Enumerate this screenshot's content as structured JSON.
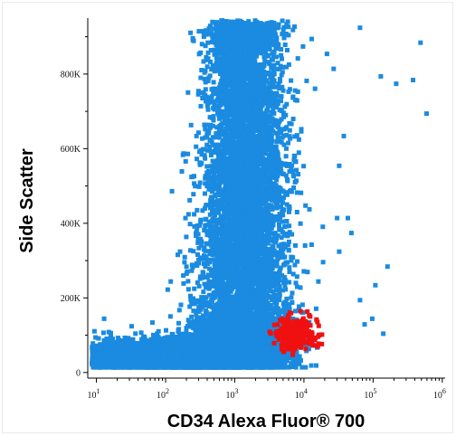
{
  "chart_data": {
    "type": "scatter",
    "xlabel": "CD34 Alexa Fluor® 700",
    "ylabel": "Side Scatter",
    "x_scale": "log",
    "x_ticks": [
      {
        "base": "10",
        "exp": "1",
        "value": 10
      },
      {
        "base": "10",
        "exp": "2",
        "value": 100
      },
      {
        "base": "10",
        "exp": "3",
        "value": 1000
      },
      {
        "base": "10",
        "exp": "4",
        "value": 10000
      },
      {
        "base": "10",
        "exp": "5",
        "value": 100000
      },
      {
        "base": "10",
        "exp": "6",
        "value": 1000000
      }
    ],
    "y_ticks": [
      {
        "label": "0",
        "value": 0
      },
      {
        "label": "200K",
        "value": 200000
      },
      {
        "label": "400K",
        "value": 400000
      },
      {
        "label": "600K",
        "value": 600000
      },
      {
        "label": "800K",
        "value": 800000
      }
    ],
    "xlim": [
      7.5,
      1100000
    ],
    "ylim": [
      -15000,
      950000
    ],
    "grid": false,
    "series": [
      {
        "color": "#1a8be0",
        "distribution": [
          {
            "x": 15,
            "y": 55000,
            "sx": 0.22,
            "sy": 22000,
            "n": 500
          },
          {
            "x": 50,
            "y": 50000,
            "sx": 0.25,
            "sy": 20000,
            "n": 900
          },
          {
            "x": 200,
            "y": 55000,
            "sx": 0.25,
            "sy": 25000,
            "n": 1300
          },
          {
            "x": 900,
            "y": 65000,
            "sx": 0.3,
            "sy": 30000,
            "n": 1300
          },
          {
            "x": 3000,
            "y": 70000,
            "sx": 0.22,
            "sy": 30000,
            "n": 500
          },
          {
            "x": 1100,
            "y": 130000,
            "sx": 0.35,
            "sy": 40000,
            "n": 1200
          },
          {
            "x": 1200,
            "y": 300000,
            "sx": 0.32,
            "sy": 70000,
            "n": 1700
          },
          {
            "x": 1300,
            "y": 520000,
            "sx": 0.3,
            "sy": 80000,
            "n": 1700
          },
          {
            "x": 1300,
            "y": 750000,
            "sx": 0.27,
            "sy": 80000,
            "n": 1500
          },
          {
            "x": 1200,
            "y": 910000,
            "sx": 0.25,
            "sy": 25000,
            "n": 700
          }
        ],
        "outliers": [
          [
            9,
            70000
          ],
          [
            9,
            100000
          ],
          [
            12,
            150000
          ],
          [
            30,
            130000
          ],
          [
            60,
            140000
          ],
          [
            70,
            110000
          ],
          [
            110,
            250000
          ],
          [
            150,
            330000
          ],
          [
            180,
            420000
          ],
          [
            220,
            530000
          ],
          [
            260,
            640000
          ],
          [
            300,
            720000
          ],
          [
            340,
            810000
          ],
          [
            420,
            870000
          ],
          [
            700,
            920000
          ],
          [
            9000,
            880000
          ],
          [
            12000,
            900000
          ],
          [
            20000,
            860000
          ],
          [
            25000,
            820000
          ],
          [
            30000,
            560000
          ],
          [
            35000,
            640000
          ],
          [
            28000,
            420000
          ],
          [
            40000,
            420000
          ],
          [
            45000,
            380000
          ],
          [
            60000,
            930000
          ],
          [
            120000,
            800000
          ],
          [
            200000,
            780000
          ],
          [
            450000,
            890000
          ],
          [
            350000,
            790000
          ],
          [
            150000,
            290000
          ],
          [
            100000,
            240000
          ],
          [
            90000,
            150000
          ],
          [
            70000,
            135000
          ],
          [
            130000,
            110000
          ],
          [
            550000,
            700000
          ],
          [
            30000,
            330000
          ],
          [
            15000,
            250000
          ],
          [
            60000,
            200000
          ]
        ]
      },
      {
        "color": "#f01010",
        "distribution": [
          {
            "x": 7000,
            "y": 110000,
            "sx": 0.16,
            "sy": 25000,
            "n": 260
          }
        ],
        "outliers": []
      }
    ]
  }
}
